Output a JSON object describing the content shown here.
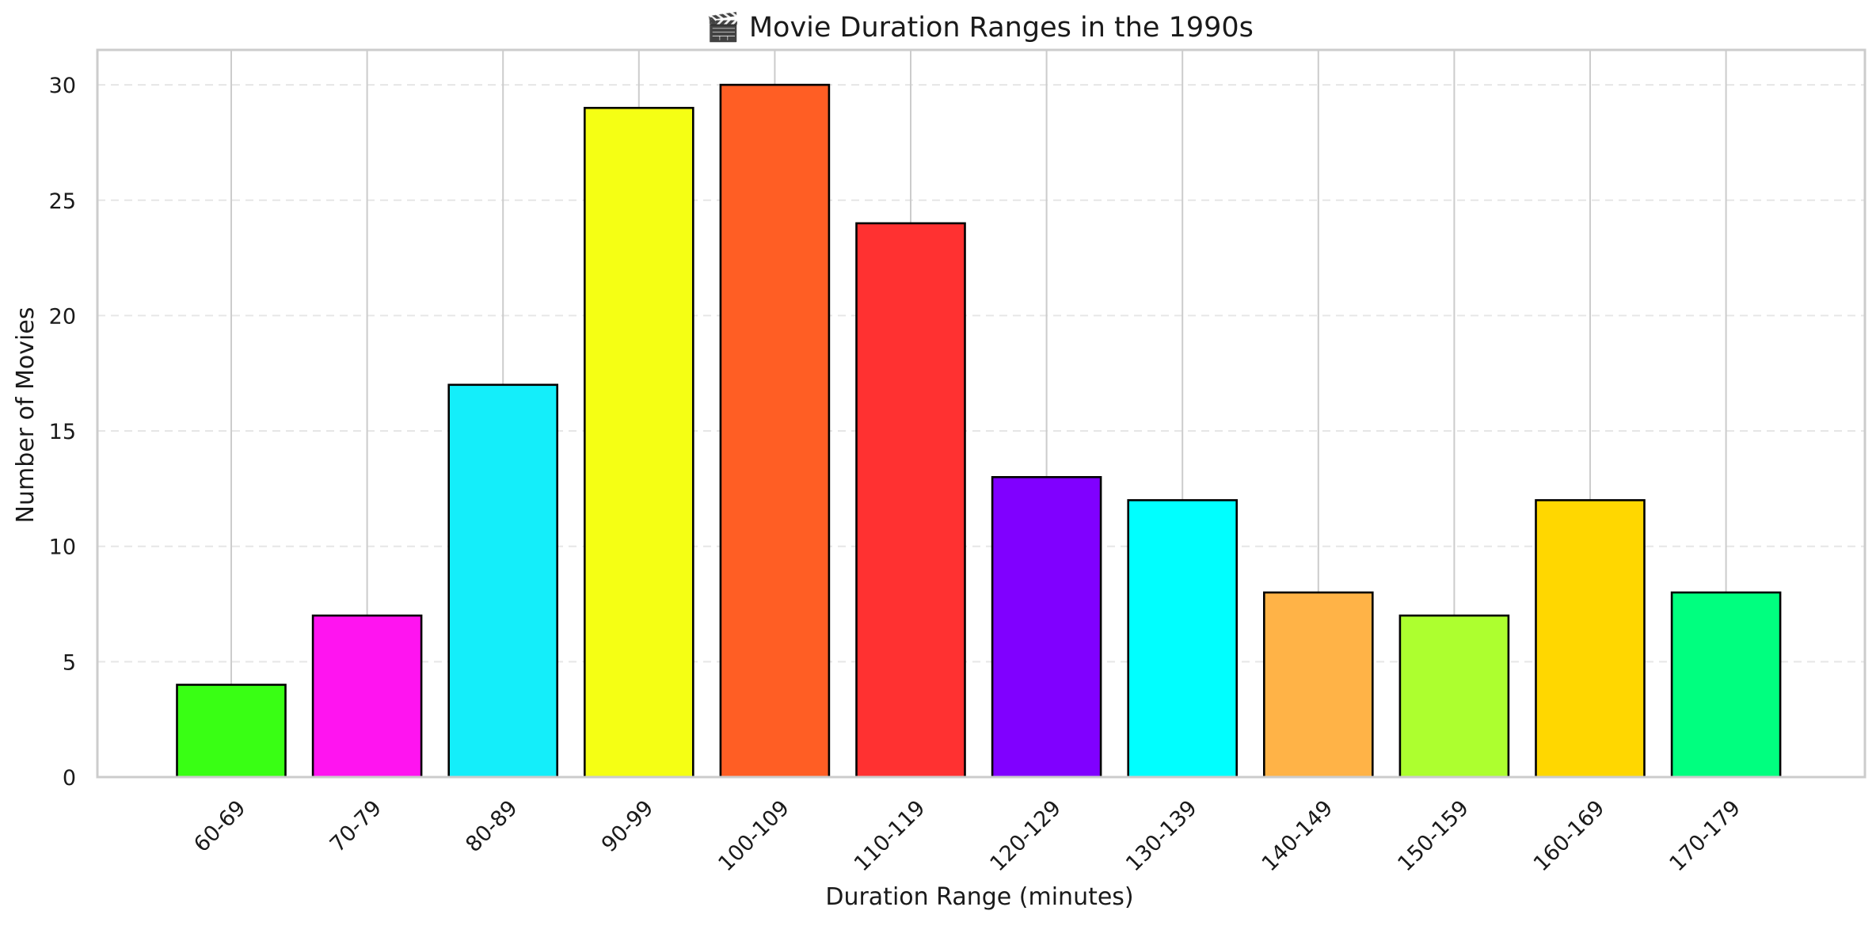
{
  "chart_data": {
    "type": "bar",
    "title": "🎬 Movie Duration Ranges in the 1990s",
    "xlabel": "Duration Range (minutes)",
    "ylabel": "Number of Movies",
    "categories": [
      "60-69",
      "70-79",
      "80-89",
      "90-99",
      "100-109",
      "110-119",
      "120-129",
      "130-139",
      "140-149",
      "150-159",
      "160-169",
      "170-179"
    ],
    "values": [
      4,
      7,
      17,
      29,
      30,
      24,
      13,
      12,
      8,
      7,
      12,
      8
    ],
    "colors": [
      "#39ff14",
      "#ff14f0",
      "#14eefa",
      "#f5ff14",
      "#ff5e24",
      "#ff3131",
      "#8000ff",
      "#00ffff",
      "#ffb347",
      "#adff2f",
      "#ffd700",
      "#00ff7f"
    ],
    "yticks": [
      0,
      5,
      10,
      15,
      20,
      25,
      30
    ],
    "ylim": [
      0,
      31.5
    ],
    "grid": "horizontal dashed"
  }
}
